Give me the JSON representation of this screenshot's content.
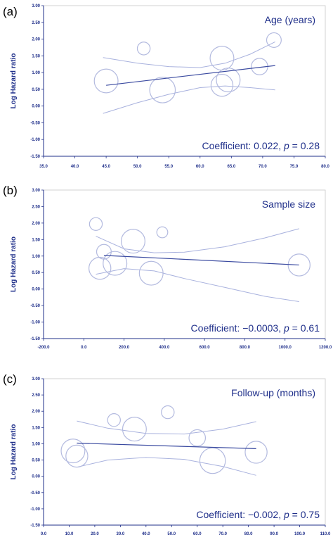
{
  "colors": {
    "axis": "#1f2f8a",
    "regression_line": "#3a4aa0",
    "ci_line": "#a9b2de",
    "bubble": "#b3badf",
    "frame": "#c8c8c8"
  },
  "chart_data": [
    {
      "type": "scatter",
      "panel_label": "(a)",
      "title": "Age (years)",
      "ylabel": "Log Hazard ratio",
      "annotation": {
        "prefix": "Coefficient: ",
        "coef": "0.022",
        "sep": ", ",
        "p_symbol": "p",
        "p_value": " = 0.28"
      },
      "xlim": [
        35,
        80
      ],
      "ylim": [
        -1.5,
        3.0
      ],
      "x_ticks": [
        "35.0",
        "40.0",
        "45.0",
        "50.0",
        "55.0",
        "60.0",
        "65.0",
        "70.0",
        "75.0",
        "80.0"
      ],
      "y_ticks": [
        "-1.50",
        "-1.00",
        "-0.50",
        "0.00",
        "0.50",
        "1.00",
        "1.50",
        "2.00",
        "2.50",
        "3.00"
      ],
      "points": [
        {
          "x": 45.0,
          "y": 0.75,
          "w": 1.3
        },
        {
          "x": 51.0,
          "y": 1.72,
          "w": 0.7
        },
        {
          "x": 54.0,
          "y": 0.48,
          "w": 1.4
        },
        {
          "x": 63.5,
          "y": 1.43,
          "w": 1.3
        },
        {
          "x": 63.5,
          "y": 0.62,
          "w": 1.2
        },
        {
          "x": 64.5,
          "y": 0.78,
          "w": 1.3
        },
        {
          "x": 69.5,
          "y": 1.18,
          "w": 0.9
        },
        {
          "x": 71.8,
          "y": 1.97,
          "w": 0.8
        }
      ],
      "fit": [
        [
          45.0,
          0.62
        ],
        [
          72.0,
          1.21
        ]
      ],
      "ci_upper": [
        [
          44.5,
          1.45
        ],
        [
          50.0,
          1.28
        ],
        [
          55.0,
          1.18
        ],
        [
          60.0,
          1.15
        ],
        [
          64.0,
          1.28
        ],
        [
          68.0,
          1.55
        ],
        [
          72.0,
          1.92
        ]
      ],
      "ci_lower": [
        [
          44.5,
          -0.22
        ],
        [
          50.0,
          0.1
        ],
        [
          55.0,
          0.35
        ],
        [
          60.0,
          0.55
        ],
        [
          64.0,
          0.6
        ],
        [
          68.0,
          0.55
        ],
        [
          72.0,
          0.48
        ]
      ]
    },
    {
      "type": "scatter",
      "panel_label": "(b)",
      "title": "Sample size",
      "ylabel": "Log Hazard ratio",
      "annotation": {
        "prefix": "Coefficient: ",
        "coef": "−0.0003",
        "sep": ", ",
        "p_symbol": "p",
        "p_value": " = 0.61"
      },
      "xlim": [
        -200,
        1200
      ],
      "ylim": [
        -1.5,
        3.0
      ],
      "x_ticks": [
        "-200.0",
        "0.0",
        "200.0",
        "400.0",
        "600.0",
        "800.0",
        "1000.0",
        "1200.0"
      ],
      "y_ticks": [
        "-1.50",
        "-1.00",
        "-0.50",
        "0.00",
        "0.50",
        "1.00",
        "1.50",
        "2.00",
        "2.50",
        "3.00"
      ],
      "points": [
        {
          "x": 60,
          "y": 1.97,
          "w": 0.7
        },
        {
          "x": 100,
          "y": 1.13,
          "w": 0.8
        },
        {
          "x": 80,
          "y": 0.63,
          "w": 1.2
        },
        {
          "x": 155,
          "y": 0.78,
          "w": 1.3
        },
        {
          "x": 245,
          "y": 1.45,
          "w": 1.3
        },
        {
          "x": 335,
          "y": 0.48,
          "w": 1.3
        },
        {
          "x": 390,
          "y": 1.72,
          "w": 0.6
        },
        {
          "x": 1070,
          "y": 0.73,
          "w": 1.2
        }
      ],
      "fit": [
        [
          100,
          1.02
        ],
        [
          1070,
          0.73
        ]
      ],
      "ci_upper": [
        [
          60,
          1.6
        ],
        [
          200,
          1.22
        ],
        [
          350,
          1.1
        ],
        [
          500,
          1.12
        ],
        [
          700,
          1.28
        ],
        [
          900,
          1.55
        ],
        [
          1070,
          1.83
        ]
      ],
      "ci_lower": [
        [
          60,
          0.45
        ],
        [
          200,
          0.62
        ],
        [
          350,
          0.55
        ],
        [
          500,
          0.32
        ],
        [
          700,
          0.05
        ],
        [
          900,
          -0.22
        ],
        [
          1070,
          -0.38
        ]
      ]
    },
    {
      "type": "scatter",
      "panel_label": "(c)",
      "title": "Follow-up (months)",
      "ylabel": "Log Hazard ratio",
      "annotation": {
        "prefix": "Coefficient: ",
        "coef": "−0.002",
        "sep": ", ",
        "p_symbol": "p",
        "p_value": " = 0.75"
      },
      "xlim": [
        0,
        110
      ],
      "ylim": [
        -1.5,
        3.0
      ],
      "x_ticks": [
        "0.0",
        "10.0",
        "20.0",
        "30.0",
        "40.0",
        "50.0",
        "60.0",
        "70.0",
        "80.0",
        "90.0",
        "100.0",
        "110.0"
      ],
      "y_ticks": [
        "-1.50",
        "-1.00",
        "-0.50",
        "0.00",
        "0.50",
        "1.00",
        "1.50",
        "2.00",
        "2.50",
        "3.00"
      ],
      "points": [
        {
          "x": 27.5,
          "y": 1.73,
          "w": 0.7
        },
        {
          "x": 35.5,
          "y": 1.45,
          "w": 1.3
        },
        {
          "x": 48.5,
          "y": 1.97,
          "w": 0.7
        },
        {
          "x": 60.0,
          "y": 1.18,
          "w": 0.9
        },
        {
          "x": 11.5,
          "y": 0.78,
          "w": 1.3
        },
        {
          "x": 13.0,
          "y": 0.62,
          "w": 1.2
        },
        {
          "x": 66.0,
          "y": 0.48,
          "w": 1.4
        },
        {
          "x": 83.0,
          "y": 0.74,
          "w": 1.2
        }
      ],
      "fit": [
        [
          13.0,
          1.02
        ],
        [
          83.0,
          0.85
        ]
      ],
      "ci_upper": [
        [
          13.0,
          1.7
        ],
        [
          25.0,
          1.48
        ],
        [
          40.0,
          1.32
        ],
        [
          55.0,
          1.3
        ],
        [
          70.0,
          1.45
        ],
        [
          83.0,
          1.68
        ]
      ],
      "ci_lower": [
        [
          13.0,
          0.28
        ],
        [
          25.0,
          0.5
        ],
        [
          40.0,
          0.58
        ],
        [
          55.0,
          0.52
        ],
        [
          70.0,
          0.3
        ],
        [
          83.0,
          0.03
        ]
      ]
    }
  ]
}
